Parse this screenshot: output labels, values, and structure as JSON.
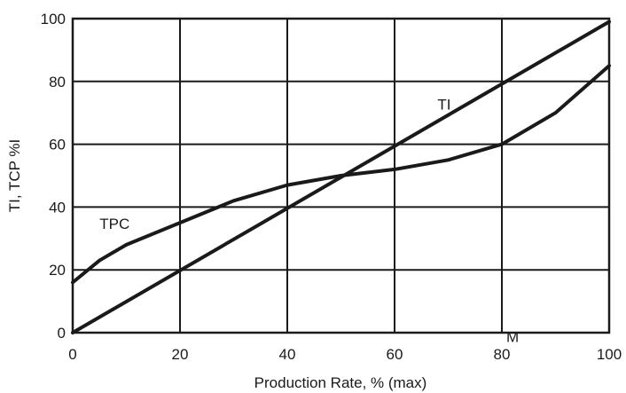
{
  "chart_data": {
    "type": "line",
    "title": "",
    "xlabel": "Production Rate, % (max)",
    "ylabel": "TI, TCP %I",
    "xlim": [
      0,
      100
    ],
    "ylim": [
      0,
      100
    ],
    "x_ticks": [
      "0",
      "20",
      "40",
      "60",
      "80",
      "100"
    ],
    "y_ticks": [
      "0",
      "20",
      "40",
      "60",
      "80",
      "100"
    ],
    "grid": true,
    "annotations": [
      {
        "text": "M",
        "x": 82,
        "y": -3
      }
    ],
    "series": [
      {
        "name": "TI",
        "x": [
          0,
          100
        ],
        "y": [
          0,
          99
        ],
        "label_at": {
          "x": 68,
          "y": 71
        }
      },
      {
        "name": "TPC",
        "x": [
          0,
          5,
          10,
          20,
          30,
          40,
          50,
          60,
          70,
          80,
          90,
          100
        ],
        "y": [
          16,
          23,
          28,
          35,
          42,
          47,
          50,
          52,
          55,
          60,
          70,
          85
        ],
        "label_at": {
          "x": 5,
          "y": 33
        }
      }
    ]
  }
}
